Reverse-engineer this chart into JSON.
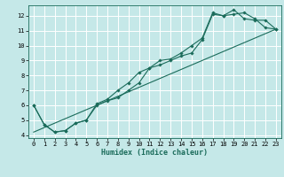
{
  "xlabel": "Humidex (Indice chaleur)",
  "xlim": [
    -0.5,
    23.5
  ],
  "ylim": [
    3.8,
    12.7
  ],
  "xticks": [
    0,
    1,
    2,
    3,
    4,
    5,
    6,
    7,
    8,
    9,
    10,
    11,
    12,
    13,
    14,
    15,
    16,
    17,
    18,
    19,
    20,
    21,
    22,
    23
  ],
  "yticks": [
    4,
    5,
    6,
    7,
    8,
    9,
    10,
    11,
    12
  ],
  "bg_color": "#c5e8e8",
  "line_color": "#1a6b5a",
  "line1_x": [
    0,
    1,
    2,
    3,
    4,
    5,
    6,
    7,
    8,
    9,
    10,
    11,
    12,
    13,
    14,
    15,
    16,
    17,
    18,
    19,
    20,
    21,
    22,
    23
  ],
  "line1_y": [
    6.0,
    4.7,
    4.2,
    4.3,
    4.8,
    5.0,
    6.0,
    6.3,
    6.5,
    7.0,
    7.5,
    8.5,
    8.7,
    9.0,
    9.3,
    9.5,
    10.4,
    12.1,
    12.0,
    12.1,
    12.2,
    11.8,
    11.2,
    11.1
  ],
  "line2_x": [
    0,
    1,
    2,
    3,
    4,
    5,
    6,
    7,
    8,
    9,
    10,
    11,
    12,
    13,
    14,
    15,
    16,
    17,
    18,
    19,
    20,
    21,
    22,
    23
  ],
  "line2_y": [
    6.0,
    4.7,
    4.2,
    4.3,
    4.8,
    5.0,
    6.1,
    6.4,
    7.0,
    7.5,
    8.2,
    8.5,
    9.0,
    9.1,
    9.5,
    10.0,
    10.5,
    12.2,
    12.0,
    12.4,
    11.8,
    11.7,
    11.7,
    11.1
  ],
  "line3_x": [
    0,
    23
  ],
  "line3_y": [
    4.2,
    11.1
  ],
  "fig_width": 3.2,
  "fig_height": 2.0,
  "dpi": 100
}
